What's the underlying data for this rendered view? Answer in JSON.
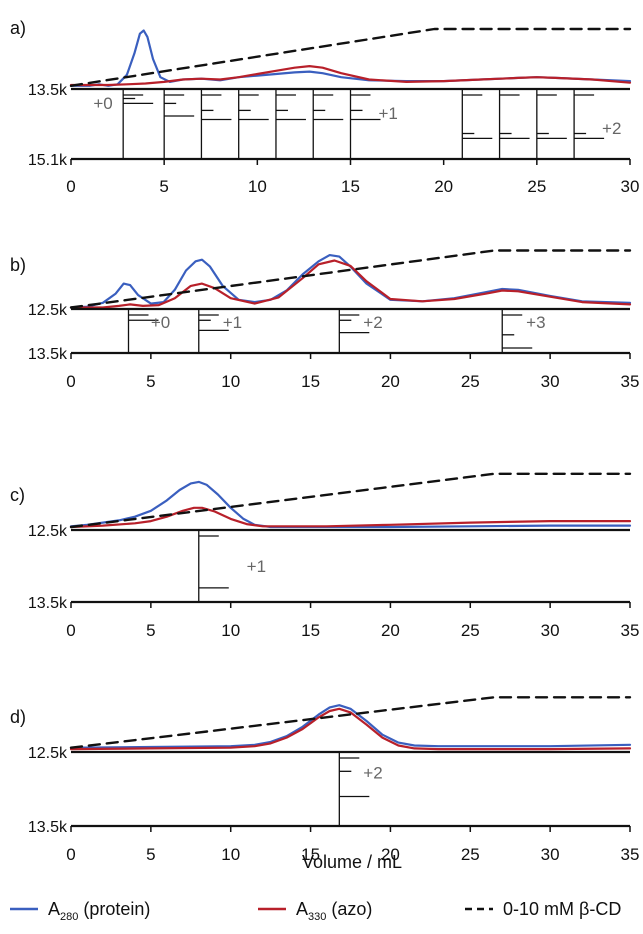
{
  "x_axis_label": "Volume / mL",
  "colors": {
    "protein": "#3a5fbf",
    "azo": "#b8202a",
    "gradient": "#111111",
    "annotation": "#666666"
  },
  "legend": [
    {
      "key": "protein",
      "label": "A",
      "sub": "280",
      "tail": " (protein)",
      "style": "solid"
    },
    {
      "key": "azo",
      "label": "A",
      "sub": "330",
      "tail": " (azo)",
      "style": "solid"
    },
    {
      "key": "gradient",
      "label": "0-10 mM β-CD",
      "sub": "",
      "tail": "",
      "style": "dashed"
    }
  ],
  "chart_data": [
    {
      "panel": "a)",
      "type": "line",
      "xlim": [
        0,
        30
      ],
      "xticks": [
        0,
        5,
        10,
        15,
        20,
        25,
        30
      ],
      "mass_ticks": [
        "13.5k",
        "15.1k"
      ],
      "series": [
        {
          "name": "A280 (protein)",
          "x": [
            0,
            1,
            1.5,
            2,
            2.5,
            3,
            3.4,
            3.7,
            3.9,
            4.1,
            4.4,
            4.8,
            5.3,
            6,
            7,
            8,
            9,
            10,
            11,
            12,
            12.8,
            13.5,
            14.5,
            16,
            18,
            20,
            22,
            24,
            25,
            26,
            28,
            30
          ],
          "y": [
            0.04,
            0.04,
            0.06,
            0.04,
            0.06,
            0.18,
            0.45,
            0.7,
            0.74,
            0.66,
            0.38,
            0.15,
            0.09,
            0.12,
            0.13,
            0.11,
            0.15,
            0.17,
            0.19,
            0.21,
            0.22,
            0.2,
            0.15,
            0.11,
            0.1,
            0.1,
            0.12,
            0.14,
            0.15,
            0.14,
            0.12,
            0.1
          ]
        },
        {
          "name": "A330 (azo)",
          "x": [
            0,
            2,
            3,
            4,
            5,
            6,
            7,
            8,
            9,
            10,
            11,
            12,
            12.8,
            13.5,
            14.5,
            16,
            18,
            20,
            22,
            24,
            25,
            26,
            28,
            30
          ],
          "y": [
            0.05,
            0.05,
            0.06,
            0.07,
            0.09,
            0.12,
            0.13,
            0.12,
            0.15,
            0.19,
            0.23,
            0.27,
            0.29,
            0.27,
            0.2,
            0.12,
            0.09,
            0.1,
            0.12,
            0.14,
            0.15,
            0.14,
            0.12,
            0.08
          ]
        },
        {
          "name": "0-10 mM β-CD",
          "x": [
            0,
            19.5,
            30
          ],
          "y": [
            0.04,
            0.76,
            0.76
          ]
        }
      ],
      "mass_spectra": [
        {
          "x": 2.8,
          "peaks": [
            0.0,
            0.05,
            0.12
          ]
        },
        {
          "x": 5.0,
          "peaks": [
            0.0,
            0.12,
            0.3
          ]
        },
        {
          "x": 7.0,
          "peaks": [
            0.0,
            0.22,
            0.35
          ]
        },
        {
          "x": 9.0,
          "peaks": [
            0.0,
            0.22,
            0.35
          ]
        },
        {
          "x": 11.0,
          "peaks": [
            0.0,
            0.22,
            0.35
          ]
        },
        {
          "x": 13.0,
          "peaks": [
            0.0,
            0.22,
            0.35
          ]
        },
        {
          "x": 15.0,
          "peaks": [
            0.0,
            0.22,
            0.35
          ]
        },
        {
          "x": 21.0,
          "peaks": [
            0.0,
            0.55,
            0.62
          ]
        },
        {
          "x": 23.0,
          "peaks": [
            0.0,
            0.55,
            0.62
          ]
        },
        {
          "x": 25.0,
          "peaks": [
            0.0,
            0.55,
            0.62
          ]
        },
        {
          "x": 27.0,
          "peaks": [
            0.0,
            0.55,
            0.62
          ]
        }
      ],
      "annotations": [
        {
          "text": "+0",
          "x": 1.2,
          "y": 0.2
        },
        {
          "text": "+1",
          "x": 16.5,
          "y": 0.34
        },
        {
          "text": "+2",
          "x": 28.5,
          "y": 0.56
        }
      ]
    },
    {
      "panel": "b)",
      "type": "line",
      "xlim": [
        0,
        35
      ],
      "xticks": [
        0,
        5,
        10,
        15,
        20,
        25,
        30,
        35
      ],
      "mass_ticks": [
        "12.5k",
        "13.5k"
      ],
      "series": [
        {
          "name": "A280 (protein)",
          "x": [
            0,
            1,
            2,
            2.8,
            3.3,
            3.7,
            4.2,
            5,
            5.8,
            6.5,
            7.2,
            7.8,
            8.2,
            8.7,
            9.5,
            10.5,
            11.5,
            12.5,
            13.5,
            14.5,
            15.5,
            16.2,
            16.8,
            17.5,
            18.5,
            20,
            22,
            24,
            26,
            27,
            28,
            30,
            32,
            35
          ],
          "y": [
            0.02,
            0.03,
            0.08,
            0.2,
            0.33,
            0.31,
            0.18,
            0.07,
            0.09,
            0.25,
            0.5,
            0.62,
            0.64,
            0.55,
            0.3,
            0.12,
            0.09,
            0.12,
            0.24,
            0.45,
            0.62,
            0.7,
            0.68,
            0.55,
            0.33,
            0.12,
            0.1,
            0.14,
            0.22,
            0.26,
            0.25,
            0.17,
            0.1,
            0.08
          ]
        },
        {
          "name": "A330 (azo)",
          "x": [
            0,
            2,
            3,
            3.7,
            4.5,
            5.5,
            6.5,
            7.5,
            8.2,
            9,
            10,
            11.5,
            13,
            14.5,
            15.5,
            16.5,
            17.5,
            18.5,
            20,
            22,
            24,
            26,
            27,
            28,
            30,
            32,
            35
          ],
          "y": [
            0.02,
            0.02,
            0.04,
            0.06,
            0.04,
            0.05,
            0.14,
            0.3,
            0.33,
            0.27,
            0.14,
            0.07,
            0.15,
            0.4,
            0.58,
            0.63,
            0.56,
            0.36,
            0.13,
            0.1,
            0.13,
            0.2,
            0.24,
            0.23,
            0.16,
            0.09,
            0.06
          ]
        },
        {
          "name": "0-10 mM β-CD",
          "x": [
            0,
            26.5,
            35
          ],
          "y": [
            0.02,
            0.76,
            0.76
          ]
        }
      ],
      "mass_spectra": [
        {
          "x": 3.6,
          "peaks": [
            0.0,
            0.12
          ]
        },
        {
          "x": 8.0,
          "peaks": [
            0.0,
            0.12,
            0.35
          ]
        },
        {
          "x": 16.8,
          "peaks": [
            0.0,
            0.12,
            0.4
          ]
        },
        {
          "x": 27.0,
          "peaks": [
            0.0,
            0.45,
            0.75
          ]
        }
      ],
      "annotations": [
        {
          "text": "+0",
          "x": 5.0,
          "y": 0.3
        },
        {
          "text": "+1",
          "x": 9.5,
          "y": 0.3
        },
        {
          "text": "+2",
          "x": 18.3,
          "y": 0.3
        },
        {
          "text": "+3",
          "x": 28.5,
          "y": 0.3
        }
      ]
    },
    {
      "panel": "c)",
      "type": "line",
      "xlim": [
        0,
        35
      ],
      "xticks": [
        0,
        5,
        10,
        15,
        20,
        25,
        30,
        35
      ],
      "mass_ticks": [
        "12.5k",
        "13.5k"
      ],
      "series": [
        {
          "name": "A280 (protein)",
          "x": [
            0,
            1,
            2,
            3,
            4,
            5,
            6,
            6.8,
            7.5,
            8,
            8.5,
            9.2,
            10,
            10.8,
            11.5,
            12.5,
            14,
            16,
            20,
            25,
            30,
            35
          ],
          "y": [
            0.05,
            0.07,
            0.1,
            0.13,
            0.18,
            0.26,
            0.4,
            0.54,
            0.63,
            0.65,
            0.61,
            0.48,
            0.3,
            0.15,
            0.07,
            0.04,
            0.04,
            0.04,
            0.04,
            0.05,
            0.06,
            0.06
          ]
        },
        {
          "name": "A330 (azo)",
          "x": [
            0,
            2,
            4,
            5,
            6,
            7,
            7.7,
            8.2,
            9,
            10,
            11,
            12,
            14,
            16,
            20,
            25,
            30,
            35
          ],
          "y": [
            0.04,
            0.06,
            0.09,
            0.12,
            0.18,
            0.26,
            0.3,
            0.3,
            0.25,
            0.15,
            0.08,
            0.05,
            0.05,
            0.05,
            0.07,
            0.1,
            0.12,
            0.12
          ]
        },
        {
          "name": "0-10 mM β-CD",
          "x": [
            0,
            26.5,
            35
          ],
          "y": [
            0.04,
            0.76,
            0.76
          ]
        }
      ],
      "mass_spectra": [
        {
          "x": 8.0,
          "peaks": [
            0.0,
            0.72
          ]
        }
      ],
      "annotations": [
        {
          "text": "+1",
          "x": 11.0,
          "y": 0.5
        }
      ]
    },
    {
      "panel": "d)",
      "type": "line",
      "xlim": [
        0,
        35
      ],
      "xticks": [
        0,
        5,
        10,
        15,
        20,
        25,
        30,
        35
      ],
      "mass_ticks": [
        "12.5k",
        "13.5k"
      ],
      "series": [
        {
          "name": "A280 (protein)",
          "x": [
            0,
            5,
            10,
            11.5,
            12.5,
            13.5,
            14.5,
            15.5,
            16.2,
            16.8,
            17.5,
            18.5,
            19.5,
            20.5,
            21.5,
            23,
            25,
            30,
            35
          ],
          "y": [
            0.06,
            0.07,
            0.08,
            0.1,
            0.14,
            0.22,
            0.35,
            0.52,
            0.62,
            0.65,
            0.6,
            0.43,
            0.24,
            0.13,
            0.09,
            0.08,
            0.08,
            0.08,
            0.1
          ]
        },
        {
          "name": "A330 (azo)",
          "x": [
            0,
            5,
            10,
            11.5,
            12.5,
            13.5,
            14.5,
            15.5,
            16.2,
            16.8,
            17.5,
            18.5,
            19.5,
            20.5,
            21.5,
            23,
            25,
            30,
            35
          ],
          "y": [
            0.04,
            0.05,
            0.06,
            0.08,
            0.12,
            0.2,
            0.32,
            0.48,
            0.57,
            0.6,
            0.55,
            0.38,
            0.2,
            0.09,
            0.05,
            0.04,
            0.04,
            0.04,
            0.05
          ]
        },
        {
          "name": "0-10 mM β-CD",
          "x": [
            0,
            26.5,
            35
          ],
          "y": [
            0.06,
            0.76,
            0.76
          ]
        }
      ],
      "mass_spectra": [
        {
          "x": 16.8,
          "peaks": [
            0.0,
            0.18,
            0.52
          ]
        }
      ],
      "annotations": [
        {
          "text": "+2",
          "x": 18.3,
          "y": 0.28
        }
      ]
    }
  ]
}
